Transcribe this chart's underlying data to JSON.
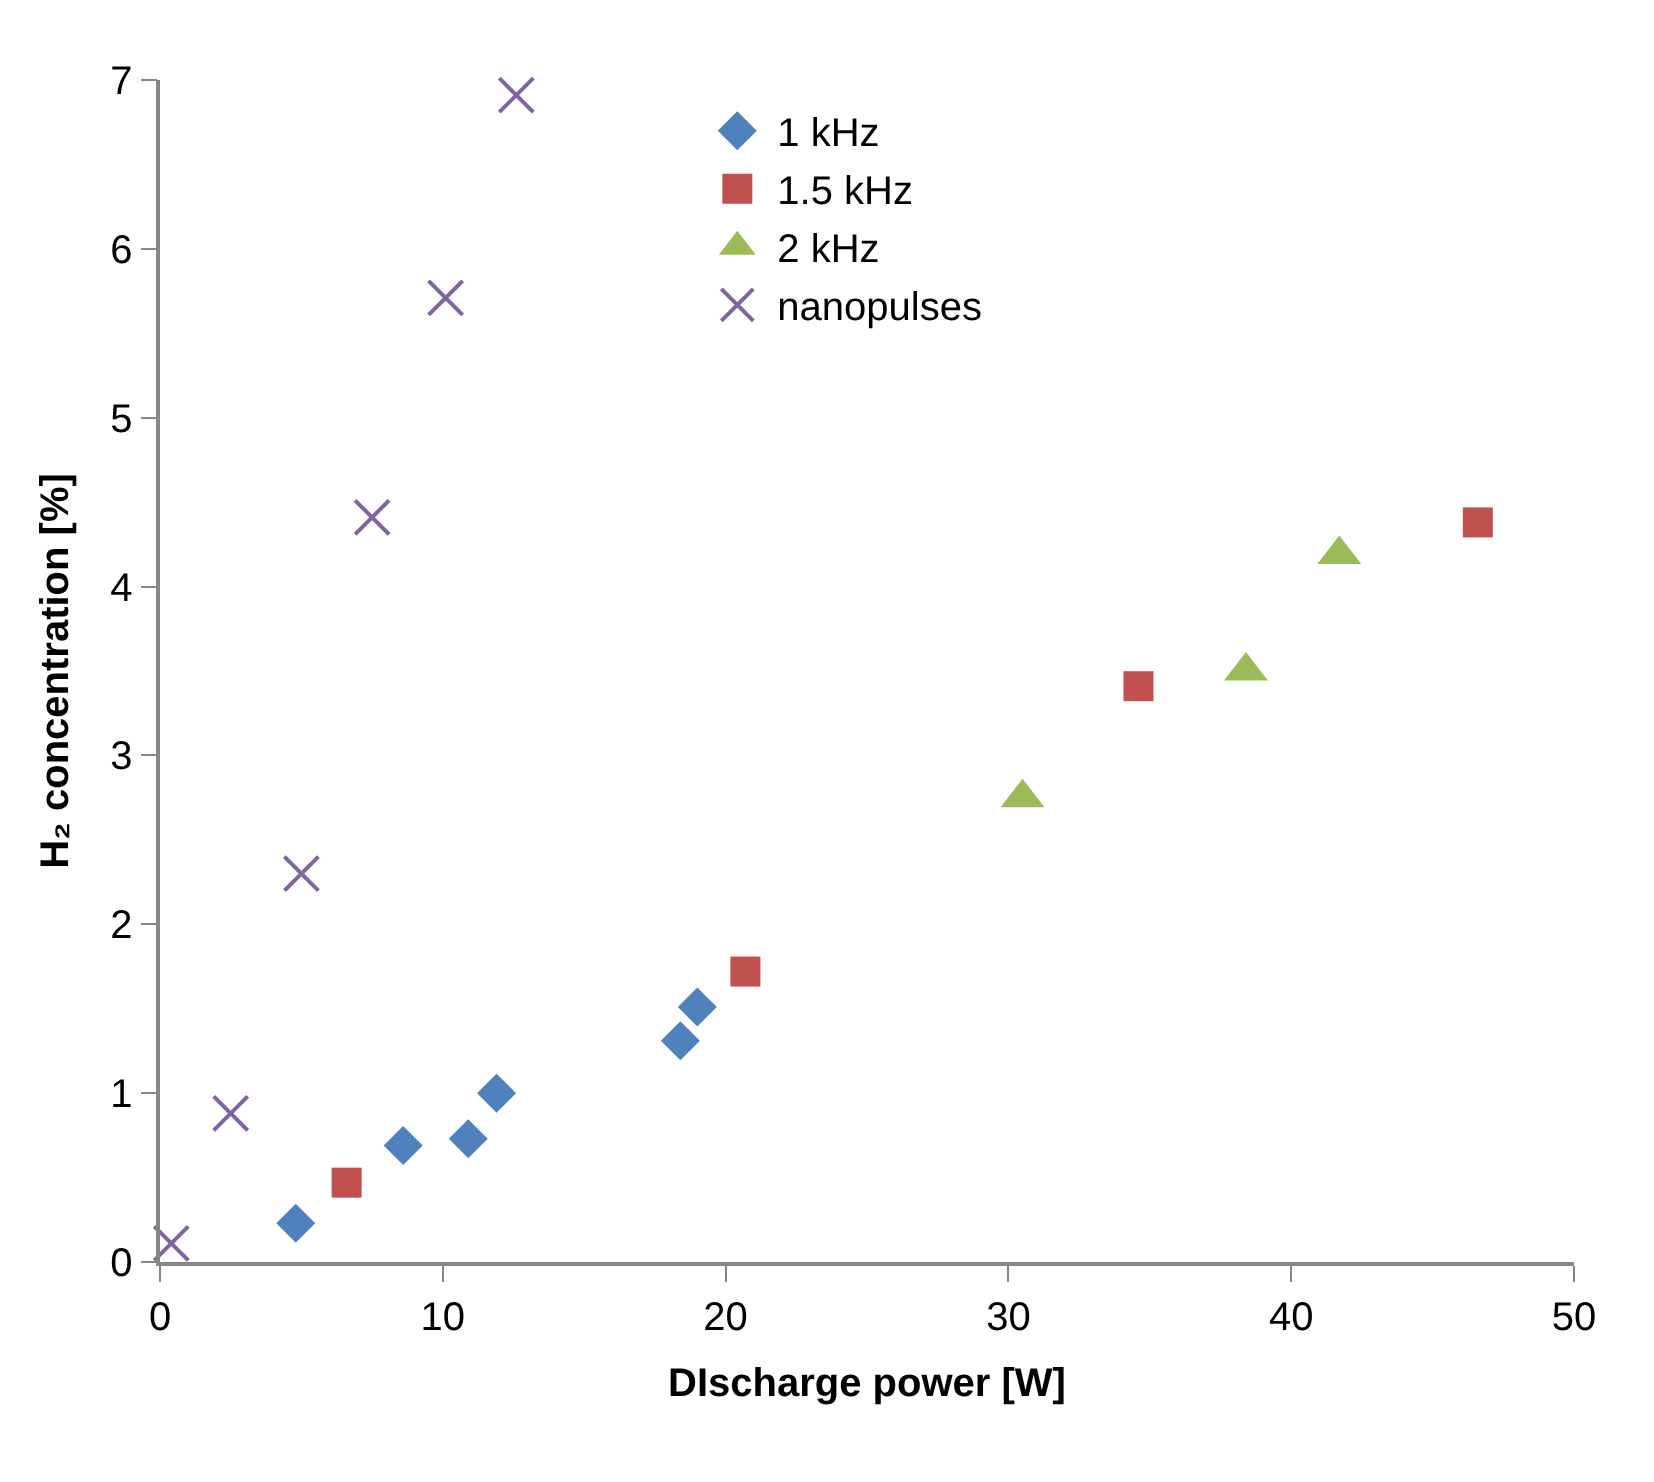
{
  "chart_data": {
    "type": "scatter",
    "xlabel": "DIscharge power [W]",
    "ylabel": "H₂ concentration [%]",
    "xlim": [
      0,
      50
    ],
    "xticks": [
      0,
      10,
      20,
      30,
      40,
      50
    ],
    "ylim": [
      0,
      7
    ],
    "yticks": [
      0,
      1,
      2,
      3,
      4,
      5,
      6,
      7
    ],
    "legend": "top",
    "series": [
      {
        "name": "1 kHz",
        "color": "#4f81bd",
        "marker": "diamond",
        "x": [
          4.8,
          8.6,
          10.9,
          11.9,
          18.4,
          19.0
        ],
        "values": [
          0.23,
          0.69,
          0.73,
          1.0,
          1.31,
          1.51
        ]
      },
      {
        "name": "1.5 kHz",
        "color": "#c0504d",
        "marker": "square",
        "x": [
          6.6,
          20.7,
          34.6,
          46.6
        ],
        "values": [
          0.47,
          1.72,
          3.41,
          4.38
        ]
      },
      {
        "name": "2 kHz",
        "color": "#9bbb59",
        "marker": "triangle",
        "x": [
          30.5,
          38.4,
          41.7
        ],
        "values": [
          2.75,
          3.5,
          4.19
        ]
      },
      {
        "name": "nanopulses",
        "color": "#8064a2",
        "marker": "cross",
        "x": [
          0.4,
          2.5,
          5.0,
          7.5,
          10.1,
          12.6
        ],
        "values": [
          0.11,
          0.88,
          2.3,
          4.41,
          5.71,
          6.91
        ]
      }
    ]
  }
}
